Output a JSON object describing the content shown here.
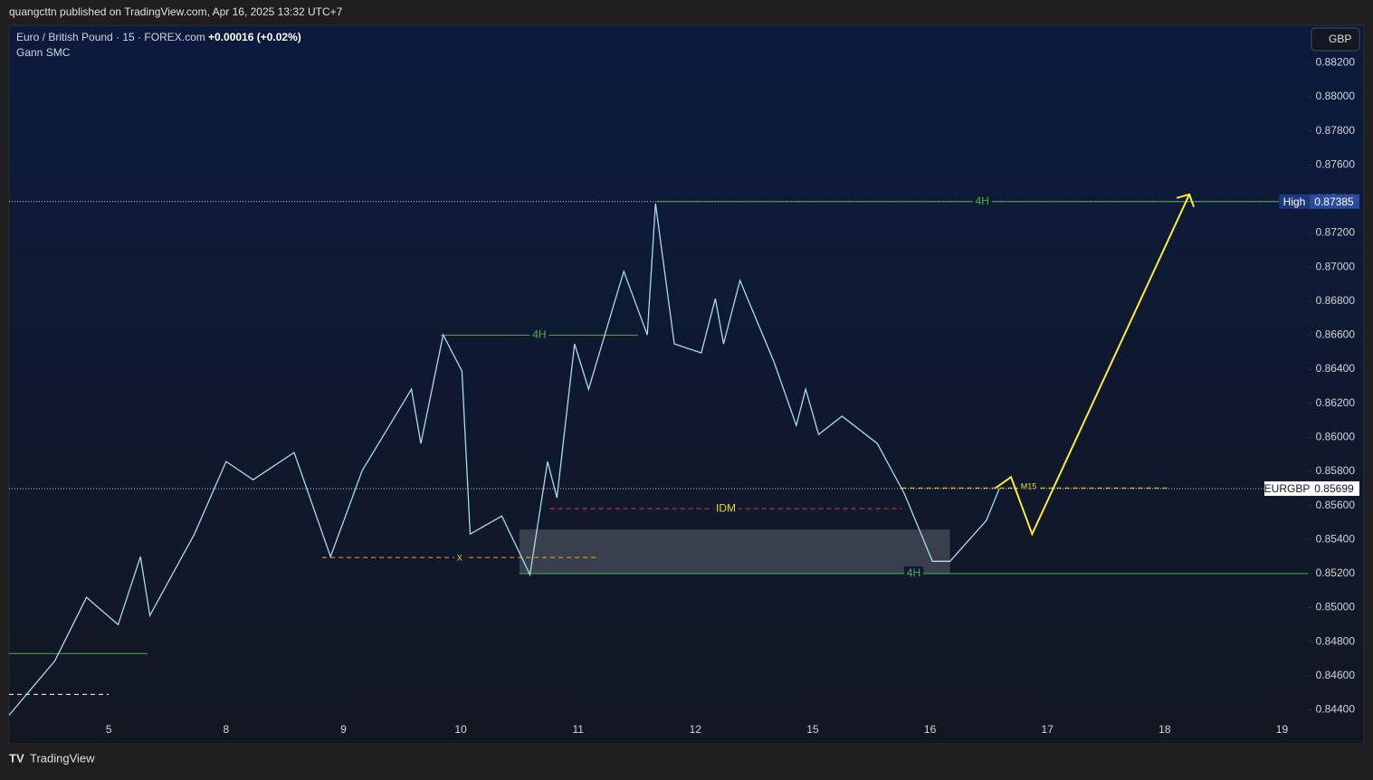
{
  "header": {
    "published": "quangcttn published on TradingView.com, Apr 16, 2025 13:32 UTC+7",
    "currency": "GBP",
    "brand": "TradingView"
  },
  "chart_data": {
    "type": "line",
    "title": "Euro / British Pound · 15 · FOREX.com",
    "change": "+0.00016 (+0.02%)",
    "indicator": "Gann SMC",
    "color": "#a8dcef",
    "x": [
      -0.85,
      -0.46,
      -0.19,
      0.08,
      0.27,
      0.35,
      0.73,
      1.0,
      1.23,
      1.58,
      1.89,
      2.16,
      2.58,
      2.66,
      2.85,
      3.01,
      3.08,
      3.35,
      3.59,
      3.74,
      3.82,
      3.97,
      4.09,
      4.32,
      4.39,
      4.59,
      4.66,
      4.82,
      5.05,
      5.17,
      5.24,
      5.38,
      5.67,
      5.86,
      5.94,
      6.05,
      6.25,
      6.55,
      6.78,
      7.02,
      7.17,
      7.48,
      7.59
    ],
    "values": [
      0.84368,
      0.84687,
      0.8506,
      0.849,
      0.85299,
      0.84953,
      0.85432,
      0.85858,
      0.85751,
      0.85911,
      0.85299,
      0.85805,
      0.86283,
      0.85964,
      0.86602,
      0.8639,
      0.85432,
      0.85538,
      0.85193,
      0.85858,
      0.85645,
      0.86549,
      0.86283,
      0.86815,
      0.86975,
      0.86602,
      0.87374,
      0.86549,
      0.86496,
      0.86815,
      0.86549,
      0.86922,
      0.86443,
      0.8607,
      0.86283,
      0.86017,
      0.86124,
      0.85964,
      0.85671,
      0.85272,
      0.85272,
      0.85512,
      0.85698
    ],
    "xlim": [
      -0.85,
      10.22
    ],
    "xticks": [
      {
        "value": 0,
        "label": "5"
      },
      {
        "value": 1,
        "label": "8"
      },
      {
        "value": 2,
        "label": "9"
      },
      {
        "value": 3,
        "label": "10"
      },
      {
        "value": 4,
        "label": "11"
      },
      {
        "value": 5,
        "label": "12"
      },
      {
        "value": 6,
        "label": "15"
      },
      {
        "value": 7,
        "label": "16"
      },
      {
        "value": 8,
        "label": "17"
      },
      {
        "value": 9,
        "label": "18"
      },
      {
        "value": 10,
        "label": "19"
      }
    ],
    "ylim": [
      0.842,
      0.8842
    ],
    "yticks": [
      {
        "value": 0.844,
        "label": "0.84400"
      },
      {
        "value": 0.846,
        "label": "0.84600"
      },
      {
        "value": 0.848,
        "label": "0.84800"
      },
      {
        "value": 0.85,
        "label": "0.85000"
      },
      {
        "value": 0.852,
        "label": "0.85200"
      },
      {
        "value": 0.854,
        "label": "0.85400"
      },
      {
        "value": 0.856,
        "label": "0.85600"
      },
      {
        "value": 0.858,
        "label": "0.85800"
      },
      {
        "value": 0.86,
        "label": "0.86000"
      },
      {
        "value": 0.862,
        "label": "0.86200"
      },
      {
        "value": 0.864,
        "label": "0.86400"
      },
      {
        "value": 0.866,
        "label": "0.86600"
      },
      {
        "value": 0.868,
        "label": "0.86800"
      },
      {
        "value": 0.87,
        "label": "0.87000"
      },
      {
        "value": 0.872,
        "label": "0.87200"
      },
      {
        "value": 0.874,
        "label": "0.87400"
      },
      {
        "value": 0.876,
        "label": "0.87600"
      },
      {
        "value": 0.878,
        "label": "0.87800"
      },
      {
        "value": 0.88,
        "label": "0.88000"
      },
      {
        "value": 0.882,
        "label": "0.88200"
      }
    ],
    "levels": [
      {
        "label": "4H",
        "value": 0.87385,
        "x": [
          4.67,
          10.22
        ],
        "color": "#4caf50",
        "style": "solid"
      },
      {
        "label": "4H",
        "value": 0.866,
        "x": [
          2.83,
          4.51
        ],
        "color": "#4caf50",
        "style": "solid"
      },
      {
        "label": "4H",
        "value": 0.852,
        "x": [
          3.5,
          10.22
        ],
        "color": "#4caf50",
        "style": "solid"
      },
      {
        "value": 0.8473,
        "x": [
          -0.85,
          0.33
        ],
        "color": "#4caf50",
        "style": "solid"
      },
      {
        "value": 0.8449,
        "x": [
          -0.85,
          0.0
        ],
        "color": "#ffffff",
        "style": "dashed"
      },
      {
        "label": "IDM",
        "value": 0.85581,
        "x": [
          3.76,
          6.76
        ],
        "color": "#f23645",
        "text_color": "#f5d90a",
        "style": "dashed"
      },
      {
        "label": "x",
        "value": 0.85294,
        "x": [
          1.82,
          4.16
        ],
        "color": "#f5a623",
        "style": "dashed"
      },
      {
        "label": "M15",
        "value": 0.85703,
        "x": [
          6.76,
          9.02
        ],
        "color": "#f5d90a",
        "style": "dashed"
      }
    ],
    "zone": {
      "x": [
        3.5,
        7.17
      ],
      "y": [
        0.852,
        0.85459
      ],
      "color": "#6b6f78"
    },
    "projection": {
      "x": [
        7.56,
        7.69,
        7.87,
        9.21
      ],
      "y": [
        0.85703,
        0.85767,
        0.85432,
        0.87427
      ],
      "color": "#ffeb3b"
    },
    "high": {
      "label": "High",
      "value": 0.87385
    },
    "last": {
      "label": "EURGBP",
      "value": 0.85699
    }
  }
}
